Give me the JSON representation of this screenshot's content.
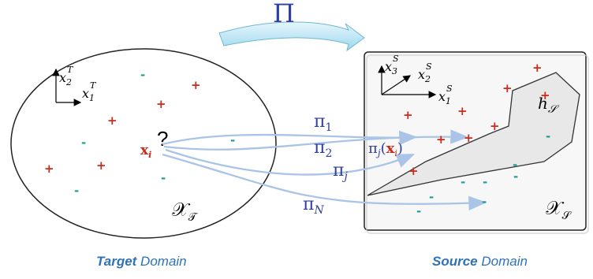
{
  "projection_symbol": "Π",
  "target": {
    "caption_bold": "Target",
    "caption_rest": " Domain",
    "domain_label": "𝒳",
    "domain_sub": "𝒯",
    "axis_x": "x",
    "axis_x_sub": "1",
    "axis_x_sup": "T",
    "axis_y": "x",
    "axis_y_sub": "2",
    "axis_y_sup": "T",
    "point_label": "x",
    "point_sub": "i",
    "question": "?"
  },
  "source": {
    "caption_bold": "Source",
    "caption_rest": " Domain",
    "domain_label": "𝒳",
    "domain_sub": "𝒮",
    "axis_1": "x",
    "axis_1_sub": "1",
    "axis_1_sup": "S",
    "axis_2": "x",
    "axis_2_sub": "2",
    "axis_2_sup": "S",
    "axis_3": "x",
    "axis_3_sub": "3",
    "axis_3_sup": "S",
    "hypothesis": "h",
    "hypothesis_sub": "𝒮",
    "projected_point": "π",
    "projected_sub": "j",
    "projected_arg": "x",
    "projected_arg_sub": "i"
  },
  "projections": [
    {
      "symbol": "π",
      "sub": "1"
    },
    {
      "symbol": "π",
      "sub": "2"
    },
    {
      "symbol": "π",
      "sub": "j"
    },
    {
      "symbol": "π",
      "sub": "N"
    }
  ],
  "colors": {
    "plus": "#cc2a1a",
    "minus": "#1f9b8f",
    "arrow": "#a9c4e6",
    "math": "#2e3f9e",
    "caption": "#2e73b8"
  }
}
